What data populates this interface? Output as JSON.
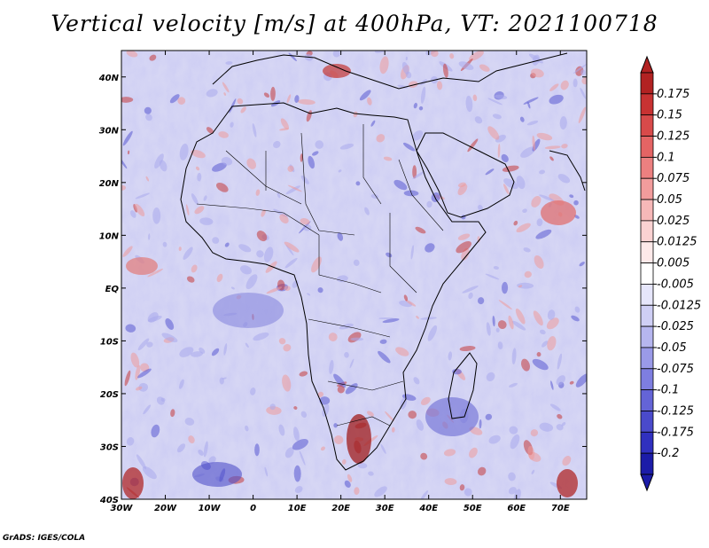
{
  "title": "Vertical velocity [m/s] at 400hPa, VT: 2021100718",
  "credit": "GrADS: IGES/COLA",
  "map": {
    "lon_range": [
      -30,
      76
    ],
    "lat_range": [
      -40,
      45
    ],
    "x_ticks": [
      "30W",
      "20W",
      "10W",
      "0",
      "10E",
      "20E",
      "30E",
      "40E",
      "50E",
      "60E",
      "70E"
    ],
    "y_ticks": [
      "40N",
      "30N",
      "20N",
      "10N",
      "EQ",
      "10S",
      "20S",
      "30S",
      "40S"
    ],
    "field": "vertical velocity",
    "level": "400hPa",
    "valid_time": "2021100718"
  },
  "colorbar": {
    "labels": [
      "0.175",
      "0.15",
      "0.125",
      "0.1",
      "0.075",
      "0.05",
      "0.025",
      "0.0125",
      "0.005",
      "-0.005",
      "-0.0125",
      "-0.025",
      "-0.05",
      "-0.075",
      "-0.1",
      "-0.125",
      "-0.175",
      "-0.2"
    ],
    "colors": [
      "#b22222",
      "#c83232",
      "#d84a4a",
      "#e46464",
      "#ec8080",
      "#f29c9c",
      "#f6b8b8",
      "#fad2d2",
      "#fde9e9",
      "#ffffff",
      "#e6e6fb",
      "#cfcff5",
      "#b6b6ef",
      "#9a9ae8",
      "#7e7ee0",
      "#6464d6",
      "#4a4acb",
      "#3030bf",
      "#1c1ca8"
    ]
  },
  "colors": {
    "positive": "#d23c3c",
    "negative": "#4646c8",
    "background_field": "#d9d9f5",
    "coastline": "#000000"
  }
}
